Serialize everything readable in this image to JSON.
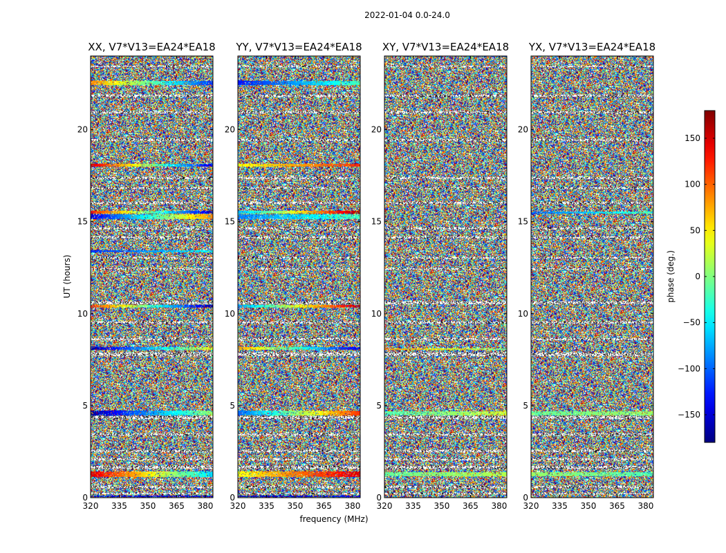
{
  "chart_data": {
    "type": "heatmap",
    "suptitle": "2022-01-04 0.0-24.0",
    "panels": [
      {
        "title": "XX, V7*V13=EA24*EA18"
      },
      {
        "title": "YY, V7*V13=EA24*EA18"
      },
      {
        "title": "XY, V7*V13=EA24*EA18"
      },
      {
        "title": "YX, V7*V13=EA24*EA18"
      }
    ],
    "xlabel": "frequency (MHz)",
    "ylabel": "UT (hours)",
    "xlim": [
      320,
      384
    ],
    "ylim": [
      0,
      24
    ],
    "xticks": [
      320,
      335,
      350,
      365,
      380
    ],
    "xtick_labels": [
      "320",
      "335",
      "350",
      "365",
      "380"
    ],
    "yticks": [
      0,
      5,
      10,
      15,
      20
    ],
    "ytick_labels": [
      "0",
      "5",
      "10",
      "15",
      "20"
    ],
    "colorbar": {
      "label": "phase (deg.)",
      "range": [
        -180,
        180
      ],
      "ticks": [
        -150,
        -100,
        -50,
        0,
        50,
        100,
        150
      ],
      "tick_labels": [
        "−150",
        "−100",
        "−50",
        "0",
        "50",
        "100",
        "150"
      ],
      "colormap": "jet"
    },
    "flag_bands_hours": [
      [
        0.2,
        0.3
      ],
      [
        0.55,
        0.65
      ],
      [
        1.6,
        1.75
      ],
      [
        2.05,
        2.15
      ],
      [
        2.5,
        2.6
      ],
      [
        3.4,
        3.5
      ],
      [
        4.3,
        4.45
      ],
      [
        7.7,
        7.9
      ],
      [
        8.6,
        8.7
      ],
      [
        9.5,
        9.6
      ],
      [
        10.55,
        10.7
      ],
      [
        12.4,
        12.5
      ],
      [
        13.0,
        13.1
      ],
      [
        14.1,
        14.2
      ],
      [
        14.6,
        14.7
      ],
      [
        16.0,
        16.1
      ],
      [
        16.8,
        16.9
      ],
      [
        17.35,
        17.45
      ],
      [
        19.4,
        19.5
      ],
      [
        20.9,
        21.0
      ],
      [
        21.8,
        21.9
      ],
      [
        23.4,
        23.5
      ]
    ],
    "coherent_phase_bands": {
      "XX": [
        {
          "t": [
            22.45,
            22.65
          ],
          "phase_start_deg": 90,
          "phase_end_deg": -120
        },
        {
          "t": [
            18.0,
            18.15
          ],
          "phase_start_deg": 150,
          "phase_end_deg": -150
        },
        {
          "t": [
            15.45,
            15.6
          ],
          "phase_start_deg": 130,
          "phase_end_deg": -160
        },
        {
          "t": [
            15.15,
            15.4
          ],
          "phase_start_deg": -150,
          "phase_end_deg": 90
        },
        {
          "t": [
            13.35,
            13.45
          ],
          "phase_start_deg": -120,
          "phase_end_deg": -40
        },
        {
          "t": [
            10.35,
            10.5
          ],
          "phase_start_deg": 120,
          "phase_end_deg": -170
        },
        {
          "t": [
            8.05,
            8.2
          ],
          "phase_start_deg": -170,
          "phase_end_deg": 40
        },
        {
          "t": [
            4.5,
            4.75
          ],
          "phase_start_deg": -170,
          "phase_end_deg": 10
        },
        {
          "t": [
            1.15,
            1.45
          ],
          "phase_start_deg": 150,
          "phase_end_deg": -60
        },
        {
          "t": [
            0.05,
            0.15
          ],
          "phase_start_deg": -150,
          "phase_end_deg": -150
        }
      ],
      "YY": [
        {
          "t": [
            22.45,
            22.65
          ],
          "phase_start_deg": -130,
          "phase_end_deg": -20
        },
        {
          "t": [
            18.0,
            18.15
          ],
          "phase_start_deg": 40,
          "phase_end_deg": 120
        },
        {
          "t": [
            15.45,
            15.6
          ],
          "phase_start_deg": -70,
          "phase_end_deg": 170
        },
        {
          "t": [
            15.15,
            15.4
          ],
          "phase_start_deg": -90,
          "phase_end_deg": -20
        },
        {
          "t": [
            10.35,
            10.5
          ],
          "phase_start_deg": -80,
          "phase_end_deg": 160
        },
        {
          "t": [
            8.05,
            8.2
          ],
          "phase_start_deg": 80,
          "phase_end_deg": -150
        },
        {
          "t": [
            4.5,
            4.75
          ],
          "phase_start_deg": -100,
          "phase_end_deg": 120
        },
        {
          "t": [
            1.15,
            1.45
          ],
          "phase_start_deg": 40,
          "phase_end_deg": 150
        },
        {
          "t": [
            0.05,
            0.15
          ],
          "phase_start_deg": -160,
          "phase_end_deg": -140
        }
      ],
      "XY": [
        {
          "t": [
            4.5,
            4.7
          ],
          "phase_start_deg": -20,
          "phase_end_deg": 30
        },
        {
          "t": [
            1.2,
            1.4
          ],
          "phase_start_deg": -10,
          "phase_end_deg": 20
        },
        {
          "t": [
            8.05,
            8.15
          ],
          "phase_start_deg": 80,
          "phase_end_deg": 0
        }
      ],
      "YX": [
        {
          "t": [
            4.5,
            4.7
          ],
          "phase_start_deg": -10,
          "phase_end_deg": 10
        },
        {
          "t": [
            1.2,
            1.4
          ],
          "phase_start_deg": 10,
          "phase_end_deg": -20
        },
        {
          "t": [
            15.45,
            15.55
          ],
          "phase_start_deg": -100,
          "phase_end_deg": -20
        }
      ]
    }
  }
}
